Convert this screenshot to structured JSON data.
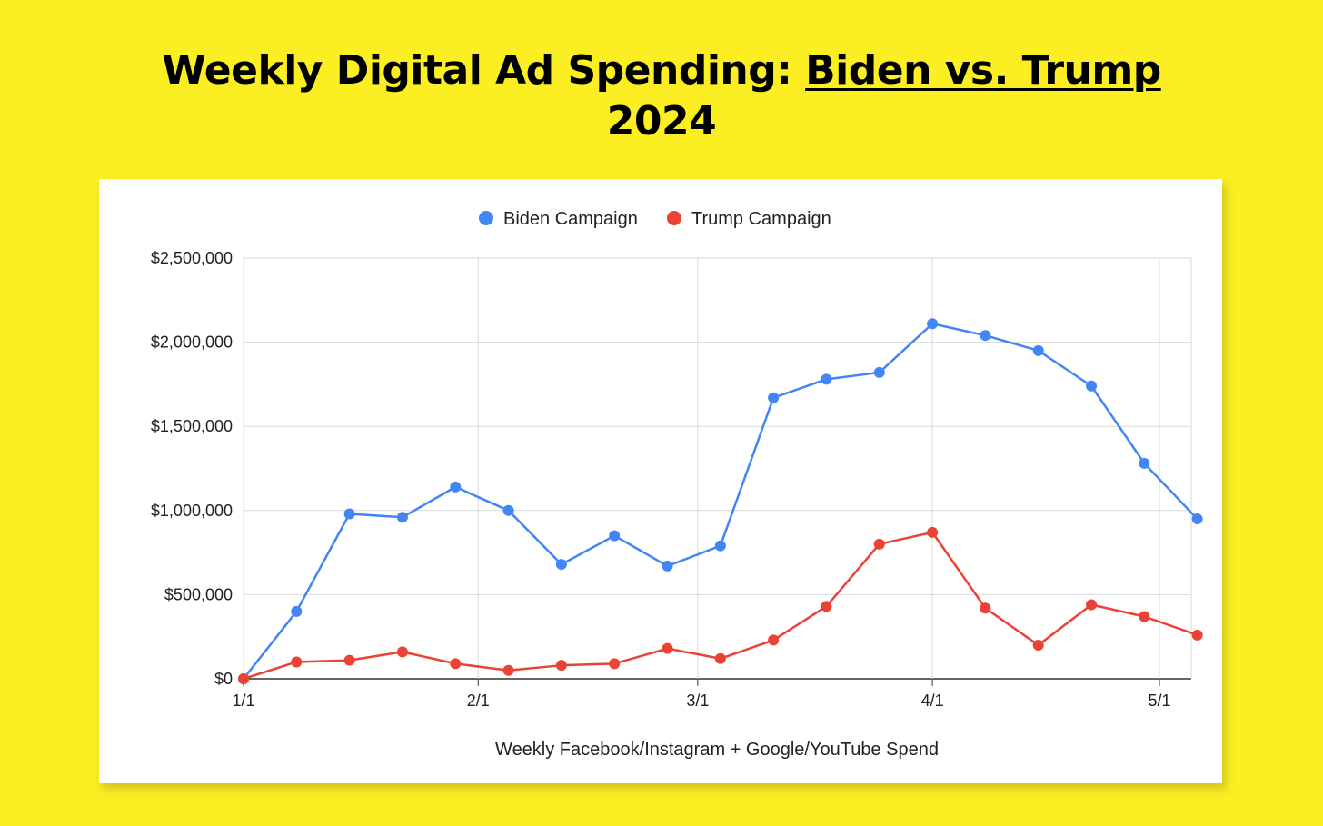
{
  "title": {
    "prefix": "Weekly Digital Ad Spending: ",
    "underlined": "Biden vs. Trump",
    "line2": "2024"
  },
  "chart_data": {
    "type": "line",
    "xlabel": "Weekly Facebook/Instagram + Google/YouTube Spend",
    "ylabel": "",
    "ylim": [
      0,
      2500000
    ],
    "yticks": [
      0,
      500000,
      1000000,
      1500000,
      2000000,
      2500000
    ],
    "ytick_labels": [
      "$0",
      "$500,000",
      "$1,000,000",
      "$1,500,000",
      "$2,000,000",
      "$2,500,000"
    ],
    "xticks": [
      "1/1",
      "2/1",
      "3/1",
      "4/1",
      "5/1"
    ],
    "grid": true,
    "legend_position": "top",
    "x": [
      "1/1",
      "1/6",
      "1/13",
      "1/20",
      "1/27",
      "2/3",
      "2/10",
      "2/17",
      "2/24",
      "3/2",
      "3/9",
      "3/16",
      "3/23",
      "3/30",
      "4/6",
      "4/13",
      "4/20",
      "4/27",
      "5/4"
    ],
    "series": [
      {
        "name": "Biden Campaign",
        "color": "#4285f4",
        "values": [
          0,
          400000,
          980000,
          960000,
          1140000,
          1000000,
          680000,
          850000,
          670000,
          790000,
          1670000,
          1780000,
          1820000,
          2110000,
          2040000,
          1950000,
          1740000,
          1280000,
          950000
        ]
      },
      {
        "name": "Trump Campaign",
        "color": "#ea4335",
        "values": [
          0,
          100000,
          110000,
          160000,
          90000,
          50000,
          80000,
          90000,
          180000,
          120000,
          230000,
          430000,
          800000,
          870000,
          420000,
          200000,
          440000,
          370000,
          260000
        ]
      }
    ]
  }
}
